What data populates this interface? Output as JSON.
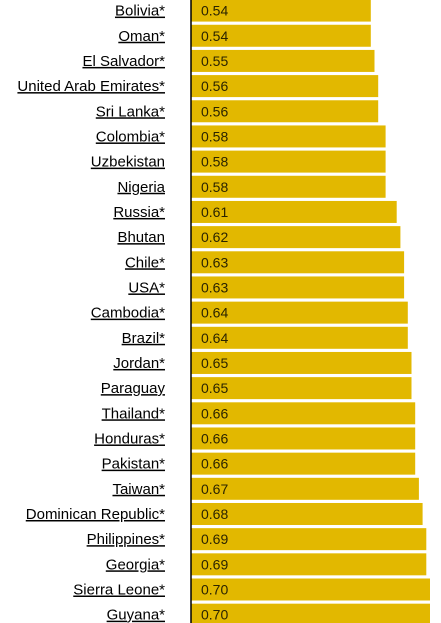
{
  "chart_data": {
    "type": "bar",
    "orientation": "horizontal",
    "bar_color": "#e2b800",
    "axis_color": "#000000",
    "categories": [
      "Bolivia*",
      "Oman*",
      "El Salvador*",
      "United Arab Emirates*",
      "Sri Lanka*",
      "Colombia*",
      "Uzbekistan ",
      "Nigeria ",
      "Russia*",
      "Bhutan ",
      "Chile*",
      "USA*",
      "Cambodia*",
      "Brazil*",
      "Jordan*",
      "Paraguay ",
      "Thailand*",
      "Honduras*",
      "Pakistan*",
      "Taiwan*",
      "Dominican Republic*",
      "Philippines*",
      "Georgia*",
      "Sierra Leone*",
      "Guyana*"
    ],
    "values": [
      0.54,
      0.54,
      0.55,
      0.56,
      0.56,
      0.58,
      0.58,
      0.58,
      0.61,
      0.62,
      0.63,
      0.63,
      0.64,
      0.64,
      0.65,
      0.65,
      0.66,
      0.66,
      0.66,
      0.67,
      0.68,
      0.69,
      0.69,
      0.7,
      0.7
    ],
    "value_labels": [
      "0.54",
      "0.54",
      "0.55",
      "0.56",
      "0.56",
      "0.58",
      "0.58",
      "0.58",
      "0.61",
      "0.62",
      "0.63",
      "0.63",
      "0.64",
      "0.64",
      "0.65",
      "0.65",
      "0.66",
      "0.66",
      "0.66",
      "0.67",
      "0.68",
      "0.69",
      "0.69",
      "0.70",
      "0.70"
    ]
  }
}
